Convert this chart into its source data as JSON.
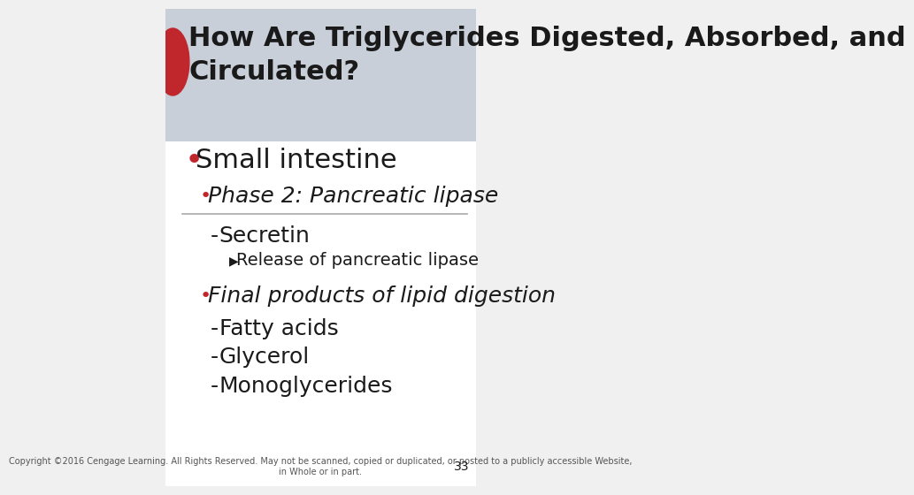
{
  "title_line1": "How Are Triglycerides Digested, Absorbed, and",
  "title_line2": "Circulated?",
  "title_fontsize": 22,
  "title_color": "#1a1a1a",
  "title_bg_color": "#c8cfd8",
  "red_circle_color": "#c0272d",
  "bullet1": "Small intestine",
  "bullet1_fontsize": 22,
  "sub_bullet1": "Phase 2: Pancreatic lipase",
  "sub_bullet1_fontsize": 18,
  "dash1": "Secretin",
  "dash1_fontsize": 18,
  "arrow1": "Release of pancreatic lipase",
  "arrow1_fontsize": 14,
  "sub_bullet2": "Final products of lipid digestion",
  "sub_bullet2_fontsize": 18,
  "dash2": "Fatty acids",
  "dash3": "Glycerol",
  "dash4": "Monoglycerides",
  "dash_fontsize": 18,
  "divider_color": "#aaaaaa",
  "footer": "Copyright ©2016 Cengage Learning. All Rights Reserved. May not be scanned, copied or duplicated, or posted to a publicly accessible Website,\nin Whole or in part.",
  "footer_fontsize": 7,
  "page_number": "33",
  "bg_color": "#f0f0f0",
  "content_bg_color": "#ffffff",
  "text_color": "#1a1a1a",
  "italic_color": "#1a1a1a",
  "red_bullet_color": "#c0272d"
}
